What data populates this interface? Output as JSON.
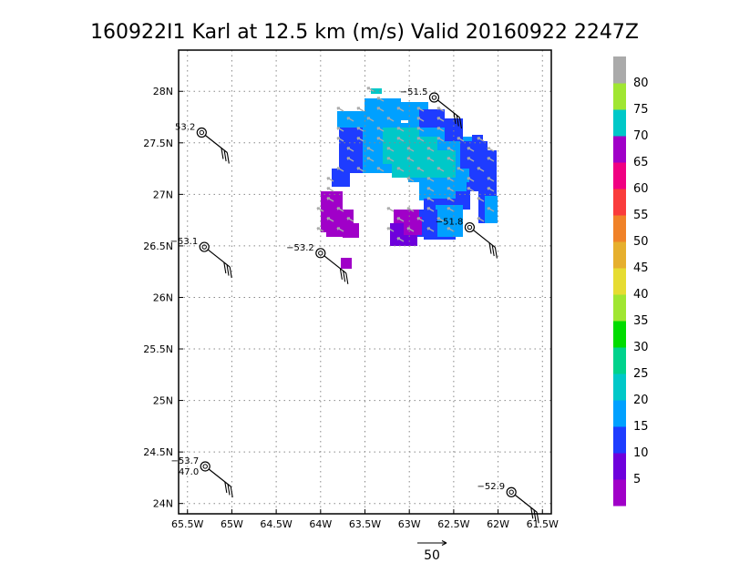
{
  "title": "160922I1 Karl at 12.5 km (m/s) Valid 20160922 2247Z",
  "map": {
    "lon_range": [
      -65.6,
      -61.4
    ],
    "lat_range": [
      23.9,
      28.4
    ],
    "lon_ticks": [
      {
        "value": -65.5,
        "label": "65.5W"
      },
      {
        "value": -65.0,
        "label": "65W"
      },
      {
        "value": -64.5,
        "label": "64.5W"
      },
      {
        "value": -64.0,
        "label": "64W"
      },
      {
        "value": -63.5,
        "label": "63.5W"
      },
      {
        "value": -63.0,
        "label": "63W"
      },
      {
        "value": -62.5,
        "label": "62.5W"
      },
      {
        "value": -62.0,
        "label": "62W"
      },
      {
        "value": -61.5,
        "label": "61.5W"
      }
    ],
    "lat_ticks": [
      {
        "value": 28.0,
        "label": "28N"
      },
      {
        "value": 27.5,
        "label": "27.5N"
      },
      {
        "value": 27.0,
        "label": "27N"
      },
      {
        "value": 26.5,
        "label": "26.5N"
      },
      {
        "value": 26.0,
        "label": "26N"
      },
      {
        "value": 25.5,
        "label": "25.5N"
      },
      {
        "value": 25.0,
        "label": "25N"
      },
      {
        "value": 24.5,
        "label": "24.5N"
      },
      {
        "value": 24.0,
        "label": "24N"
      }
    ],
    "grid": "dotted"
  },
  "colorbar": {
    "levels": [
      "5",
      "10",
      "15",
      "20",
      "25",
      "30",
      "35",
      "40",
      "45",
      "50",
      "55",
      "60",
      "65",
      "70",
      "75",
      "80"
    ],
    "colors": [
      "#a000c8",
      "#6e00dc",
      "#1e3cff",
      "#00a0ff",
      "#00c8c8",
      "#00d28c",
      "#00dc00",
      "#a0e632",
      "#e6dc32",
      "#e6af2d",
      "#f08228",
      "#fa3c3c",
      "#f00082",
      "#a000c8",
      "#00c8c8",
      "#a0e632",
      "#aaaaaa"
    ]
  },
  "stations": [
    {
      "lon": -65.34,
      "lat": 27.6,
      "label": "53.2"
    },
    {
      "lon": -65.31,
      "lat": 26.49,
      "label": "−53.1"
    },
    {
      "lon": -64.0,
      "lat": 26.43,
      "label": "−53.2"
    },
    {
      "lon": -62.72,
      "lat": 27.94,
      "label": "−51.5"
    },
    {
      "lon": -62.32,
      "lat": 26.68,
      "label": "−51.8"
    },
    {
      "lon": -65.3,
      "lat": 24.36,
      "label": "−53.7",
      "label2": "47.0"
    },
    {
      "lon": -61.85,
      "lat": 24.11,
      "label": "−52.9"
    }
  ],
  "reference_vector": {
    "label": "50"
  },
  "colors": {
    "grid": "#888888",
    "arrow": "#aaaaaa"
  }
}
